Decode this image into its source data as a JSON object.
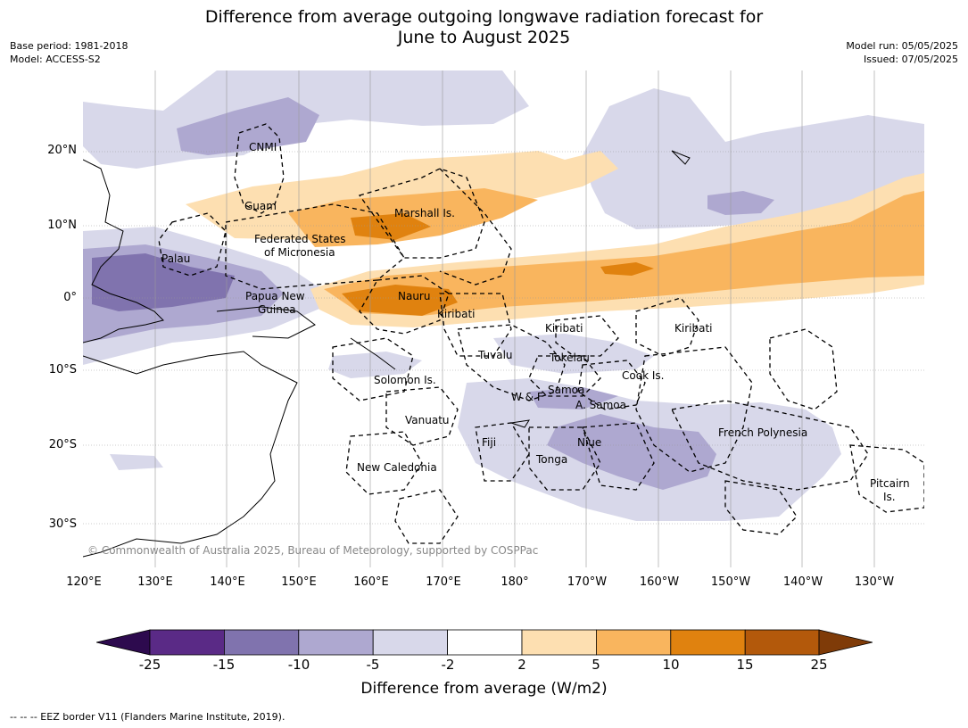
{
  "title": {
    "line1": "Difference from average outgoing longwave radiation forecast for",
    "line2": "June to August 2025"
  },
  "meta": {
    "base_period": "Base period: 1981-2018",
    "model": "Model: ACCESS-S2",
    "model_run": "Model run: 05/05/2025",
    "issued": "Issued: 07/05/2025"
  },
  "lat_labels": [
    "20°N",
    "10°N",
    "0°",
    "10°S",
    "20°S",
    "30°S"
  ],
  "lon_labels": [
    "120°E",
    "130°E",
    "140°E",
    "150°E",
    "160°E",
    "170°E",
    "180°",
    "170°W",
    "160°W",
    "150°W",
    "140°W",
    "130°W"
  ],
  "regions": {
    "cnmi": "CNMI",
    "guam": "Guam",
    "marshall": "Marshall Is.",
    "fsm_1": "Federated States",
    "fsm_2": "of Micronesia",
    "palau": "Palau",
    "png_1": "Papua New",
    "png_2": "Guinea",
    "nauru": "Nauru",
    "kiribati_w": "Kiribati",
    "kiribati_c": "Kiribati",
    "kiribati_e": "Kiribati",
    "tuvalu": "Tuvalu",
    "tokelau": "Tokelau",
    "solomon": "Solomon Is.",
    "cook": "Cook Is.",
    "samoa": "Samoa",
    "wf": "W & F",
    "asamoa": "A. Samoa",
    "vanuatu": "Vanuatu",
    "fiji": "Fiji",
    "niue": "Niue",
    "tonga": "Tonga",
    "frpoly": "French Polynesia",
    "newcal": "New Caledonia",
    "pitcairn_1": "Pitcairn",
    "pitcairn_2": "Is."
  },
  "copyright": "© Commonwealth of Australia 2025, Bureau of Meteorology, supported by COSPPac",
  "colorbar": {
    "ticks": [
      "-25",
      "-15",
      "-10",
      "-5",
      "-2",
      "2",
      "5",
      "10",
      "15",
      "25"
    ],
    "colors": [
      "#2d0a4e",
      "#5a2a86",
      "#8073ae",
      "#aea8d0",
      "#d8d8ea",
      "#ffffff",
      "#fddfb1",
      "#f9b55e",
      "#e0820f",
      "#b3590b",
      "#7f3b08"
    ],
    "title": "Difference from average (W/m2)"
  },
  "footer": "--  --  -- EEZ border V11 (Flanders Marine Institute, 2019)."
}
